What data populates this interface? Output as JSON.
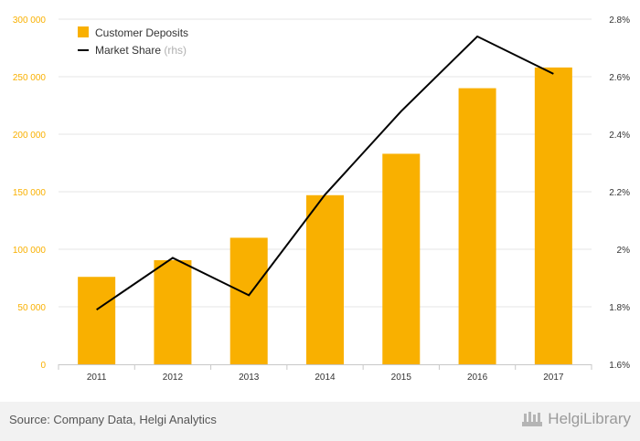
{
  "chart_data": {
    "type": "bar",
    "categories": [
      "2011",
      "2012",
      "2013",
      "2014",
      "2015",
      "2016",
      "2017"
    ],
    "series": [
      {
        "name": "Customer Deposits",
        "type": "bar",
        "axis": "left",
        "values": [
          76000,
          90500,
          110000,
          147000,
          183000,
          240000,
          258000
        ]
      },
      {
        "name": "Market Share",
        "type": "line",
        "axis": "right",
        "values": [
          1.79,
          1.97,
          1.84,
          2.19,
          2.48,
          2.74,
          2.61
        ]
      }
    ],
    "y_left": {
      "min": 0,
      "max": 300000,
      "ticks": [
        0,
        50000,
        100000,
        150000,
        200000,
        250000,
        300000
      ],
      "tick_labels": [
        "0",
        "50 000",
        "100 000",
        "150 000",
        "200 000",
        "250 000",
        "300 000"
      ]
    },
    "y_right": {
      "min": 1.6,
      "max": 2.8,
      "ticks": [
        1.6,
        1.8,
        2.0,
        2.2,
        2.4,
        2.6,
        2.8
      ],
      "tick_labels": [
        "1.6%",
        "1.8%",
        "2%",
        "2.2%",
        "2.4%",
        "2.6%",
        "2.8%"
      ]
    },
    "legend": {
      "position": "top-left",
      "items": [
        {
          "label": "Customer Deposits",
          "suffix": ""
        },
        {
          "label": "Market Share",
          "suffix": "(rhs)"
        }
      ]
    },
    "grid": true
  },
  "colors": {
    "bar": "#f9b000",
    "line": "#000000",
    "left_axis_text": "#f9b000",
    "grid": "#e6e6e6"
  },
  "footer": {
    "source": "Source: Company Data, Helgi Analytics",
    "brand": "HelgiLibrary"
  }
}
